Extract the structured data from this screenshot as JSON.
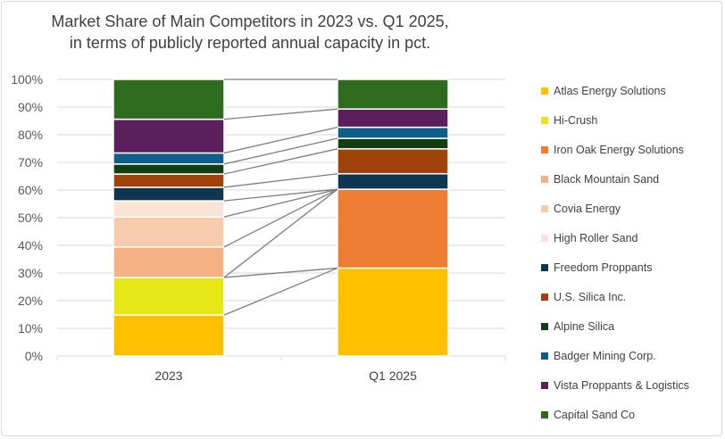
{
  "chart_data": {
    "type": "bar",
    "stacked": true,
    "title": [
      "Market Share of Main Competitors in 2023 vs. Q1 2025,",
      "in terms of publicly reported annual capacity in pct."
    ],
    "categories": [
      "2023",
      "Q1 2025"
    ],
    "ylim": [
      0,
      100
    ],
    "yticks": [
      "0%",
      "10%",
      "20%",
      "30%",
      "40%",
      "50%",
      "60%",
      "70%",
      "80%",
      "90%",
      "100%"
    ],
    "grid": true,
    "legend_position": "right",
    "series": [
      {
        "name": "Atlas Energy Solutions",
        "color": "#ffc000",
        "values": [
          14.8,
          31.8
        ]
      },
      {
        "name": "Hi-Crush",
        "color": "#e7e718",
        "values": [
          13.6,
          0
        ]
      },
      {
        "name": "Iron Oak Energy Solutions",
        "color": "#ed7d31",
        "values": [
          0,
          28.5
        ]
      },
      {
        "name": "Black Mountain Sand",
        "color": "#f4b183",
        "values": [
          11.0,
          0
        ]
      },
      {
        "name": "Covia Energy",
        "color": "#f8cbad",
        "values": [
          10.9,
          0
        ]
      },
      {
        "name": "High Roller Sand",
        "color": "#fbe3d6",
        "values": [
          5.8,
          0
        ]
      },
      {
        "name": "Freedom Proppants",
        "color": "#0e3650",
        "values": [
          4.9,
          5.6
        ]
      },
      {
        "name": "U.S. Silica Inc.",
        "color": "#a0430a",
        "values": [
          4.8,
          9.0
        ]
      },
      {
        "name": "Alpine Silica",
        "color": "#133d12",
        "values": [
          3.6,
          3.8
        ]
      },
      {
        "name": "Badger Mining Corp.",
        "color": "#0e5e8a",
        "values": [
          4.0,
          4.0
        ]
      },
      {
        "name": "Vista Proppants & Logistics",
        "color": "#5b1f5e",
        "values": [
          12.2,
          6.6
        ]
      },
      {
        "name": "Capital Sand Co",
        "color": "#2f6b1f",
        "values": [
          14.4,
          10.7
        ]
      }
    ]
  }
}
